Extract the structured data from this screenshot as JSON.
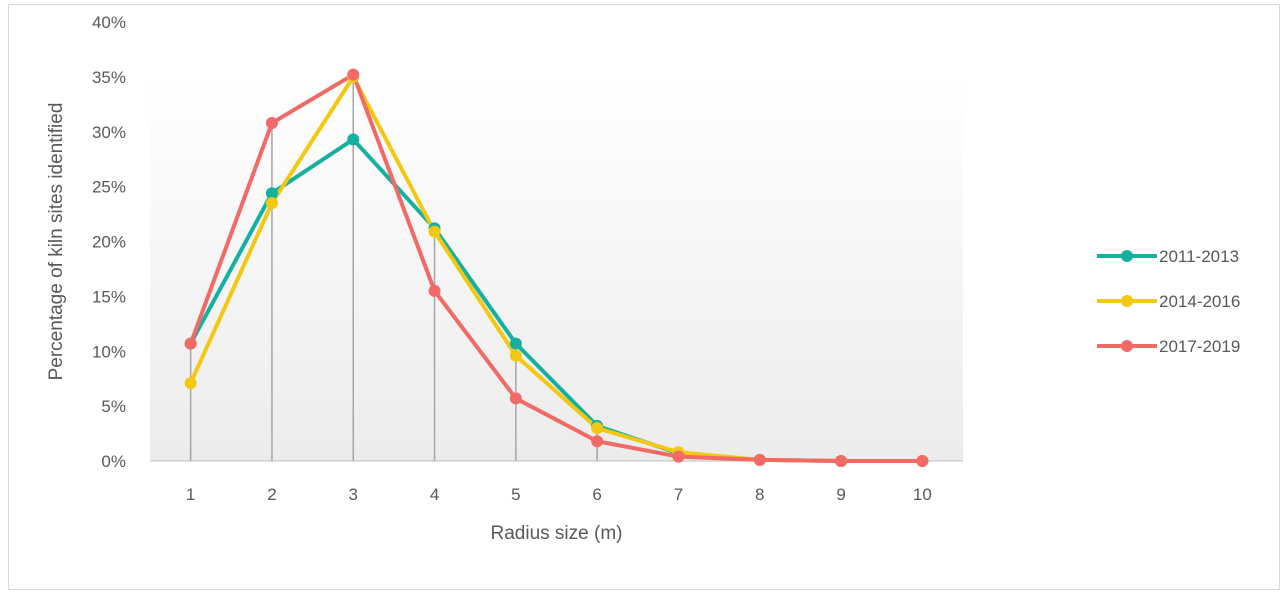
{
  "chart_data": {
    "type": "line",
    "title": "",
    "xlabel": "Radius size (m)",
    "ylabel": "Percentage of kiln sites identified",
    "categories": [
      "1",
      "2",
      "3",
      "4",
      "5",
      "6",
      "7",
      "8",
      "9",
      "10"
    ],
    "ylim": [
      0,
      40
    ],
    "yticks": [
      "0%",
      "5%",
      "10%",
      "15%",
      "20%",
      "25%",
      "30%",
      "35%",
      "40%"
    ],
    "grid": false,
    "drop_lines": true,
    "legend_position": "right",
    "series": [
      {
        "name": "2011-2013",
        "color": "#14b1a1",
        "values": [
          10.7,
          24.4,
          29.3,
          21.2,
          10.7,
          3.2,
          0.7,
          0.1,
          0.0,
          0.0
        ]
      },
      {
        "name": "2014-2016",
        "color": "#f2c811",
        "values": [
          7.1,
          23.5,
          35.0,
          20.9,
          9.6,
          3.0,
          0.8,
          0.1,
          0.0,
          0.0
        ]
      },
      {
        "name": "2017-2019",
        "color": "#f26a66",
        "values": [
          10.7,
          30.8,
          35.2,
          15.5,
          5.7,
          1.8,
          0.4,
          0.1,
          0.0,
          0.0
        ]
      }
    ]
  }
}
